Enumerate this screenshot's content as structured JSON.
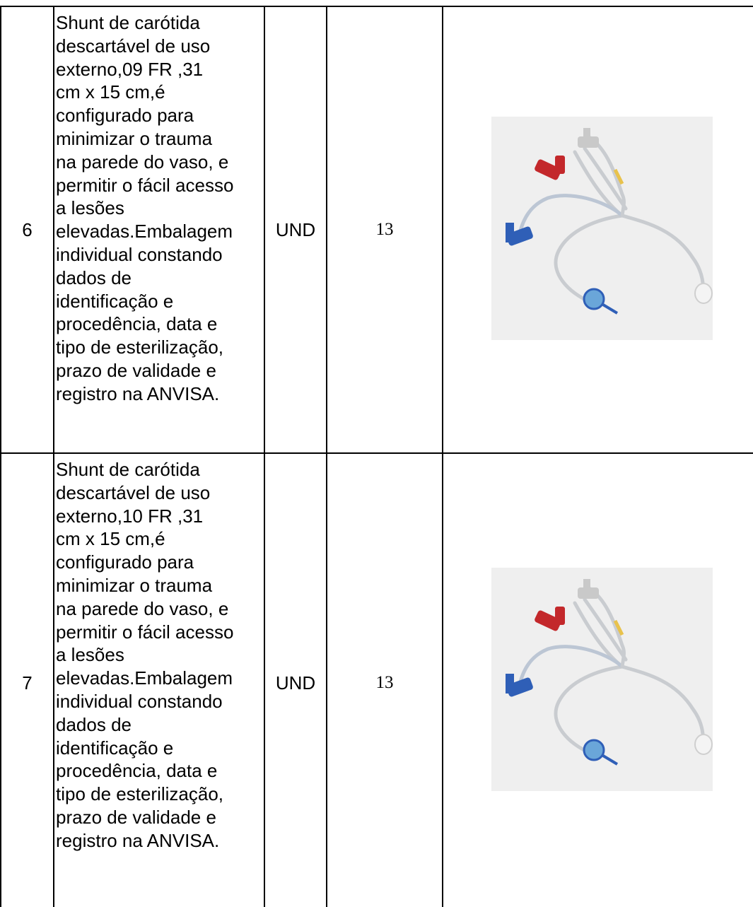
{
  "table": {
    "rows": [
      [
        "6",
        [
          "Shunt de carótida",
          "descartável de uso",
          "externo,09 FR ,31",
          "cm x 15 cm,é",
          "configurado para",
          "minimizar o trauma",
          "na parede do vaso, e",
          "permitir o fácil acesso",
          "a lesões",
          "elevadas.Embalagem",
          "individual constando",
          "dados de",
          "identificação e",
          "procedência, data e",
          "tipo de esterilização,",
          "prazo de validade e",
          "registro na ANVISA."
        ],
        "UND",
        "13"
      ],
      [
        "7",
        [
          "Shunt de carótida",
          "descartável de uso",
          "externo,10 FR ,31",
          "cm x 15 cm,é",
          "configurado para",
          "minimizar o trauma",
          "na parede do vaso, e",
          "permitir o fácil acesso",
          "a lesões",
          "elevadas.Embalagem",
          "individual constando",
          "dados de",
          "identificação e",
          "procedência, data e",
          "tipo de esterilização,",
          "prazo de validade e",
          "registro na ANVISA."
        ],
        "UND",
        "13"
      ]
    ]
  }
}
